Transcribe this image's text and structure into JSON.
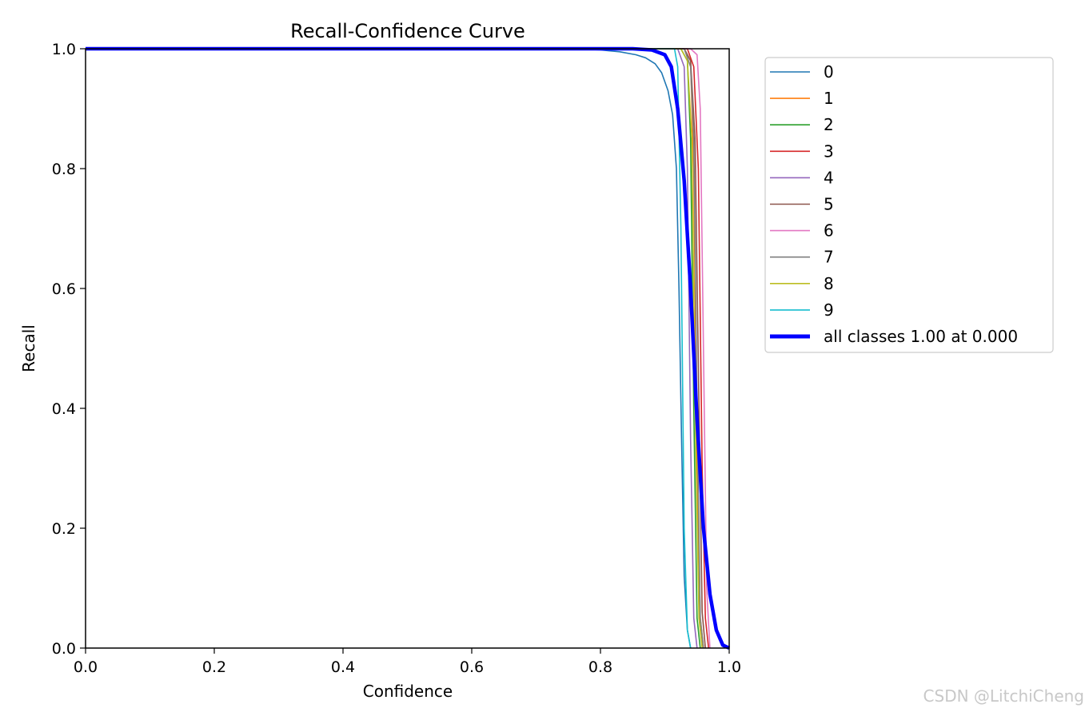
{
  "chart_data": {
    "type": "line",
    "title": "Recall-Confidence Curve",
    "xlabel": "Confidence",
    "ylabel": "Recall",
    "xlim": [
      0,
      1
    ],
    "ylim": [
      0,
      1
    ],
    "xticks": [
      "0.0",
      "0.2",
      "0.4",
      "0.6",
      "0.8",
      "1.0"
    ],
    "yticks": [
      "0.0",
      "0.2",
      "0.4",
      "0.6",
      "0.8",
      "1.0"
    ],
    "grid": false,
    "legend_position": "outside-top-right",
    "series": [
      {
        "name": "0",
        "color": "#1f77b4",
        "x": [
          0,
          0.75,
          0.8,
          0.83,
          0.855,
          0.87,
          0.885,
          0.895,
          0.905,
          0.912,
          0.918,
          0.922,
          0.926,
          0.93,
          0.935,
          0.94
        ],
        "y": [
          1,
          1,
          0.998,
          0.995,
          0.99,
          0.985,
          0.975,
          0.96,
          0.93,
          0.89,
          0.8,
          0.6,
          0.35,
          0.12,
          0.03,
          0
        ]
      },
      {
        "name": "1",
        "color": "#ff7f0e",
        "x": [
          0,
          0.93,
          0.94,
          0.945,
          0.95,
          0.955,
          0.96
        ],
        "y": [
          1,
          1,
          0.98,
          0.8,
          0.3,
          0.05,
          0
        ]
      },
      {
        "name": "2",
        "color": "#2ca02c",
        "x": [
          0,
          0.925,
          0.935,
          0.94,
          0.945,
          0.95,
          0.955
        ],
        "y": [
          1,
          1,
          0.98,
          0.85,
          0.4,
          0.05,
          0
        ]
      },
      {
        "name": "3",
        "color": "#d62728",
        "x": [
          0,
          0.935,
          0.945,
          0.952,
          0.958,
          0.963,
          0.968
        ],
        "y": [
          1,
          1,
          0.97,
          0.8,
          0.3,
          0.05,
          0
        ]
      },
      {
        "name": "4",
        "color": "#9467bd",
        "x": [
          0,
          0.92,
          0.93,
          0.935,
          0.94,
          0.945,
          0.95
        ],
        "y": [
          1,
          1,
          0.97,
          0.8,
          0.35,
          0.05,
          0
        ]
      },
      {
        "name": "5",
        "color": "#8c564b",
        "x": [
          0,
          0.93,
          0.94,
          0.947,
          0.953,
          0.958,
          0.963
        ],
        "y": [
          1,
          1,
          0.98,
          0.85,
          0.4,
          0.06,
          0
        ]
      },
      {
        "name": "6",
        "color": "#e377c2",
        "x": [
          0,
          0.94,
          0.95,
          0.955,
          0.96,
          0.965,
          0.97
        ],
        "y": [
          1,
          1,
          0.99,
          0.9,
          0.5,
          0.1,
          0
        ]
      },
      {
        "name": "7",
        "color": "#7f7f7f",
        "x": [
          0,
          0.93,
          0.94,
          0.945,
          0.95,
          0.955,
          0.96
        ],
        "y": [
          1,
          1,
          0.97,
          0.85,
          0.4,
          0.05,
          0
        ]
      },
      {
        "name": "8",
        "color": "#bcbd22",
        "x": [
          0,
          0.925,
          0.935,
          0.942,
          0.948,
          0.953,
          0.958
        ],
        "y": [
          1,
          1,
          0.98,
          0.85,
          0.35,
          0.05,
          0
        ]
      },
      {
        "name": "9",
        "color": "#17becf",
        "x": [
          0,
          0.915,
          0.92,
          0.925,
          0.93,
          0.935,
          0.94
        ],
        "y": [
          1,
          1,
          0.97,
          0.7,
          0.2,
          0.03,
          0
        ]
      },
      {
        "name": "all classes 1.00 at 0.000",
        "color": "#0000ff",
        "linewidth": "thick",
        "x": [
          0,
          0.85,
          0.88,
          0.9,
          0.91,
          0.92,
          0.93,
          0.94,
          0.95,
          0.96,
          0.97,
          0.98,
          0.99,
          1.0
        ],
        "y": [
          1,
          1,
          0.998,
          0.99,
          0.97,
          0.9,
          0.78,
          0.6,
          0.38,
          0.2,
          0.09,
          0.03,
          0.005,
          0
        ]
      }
    ]
  },
  "watermark": "CSDN @LitchiCheng"
}
